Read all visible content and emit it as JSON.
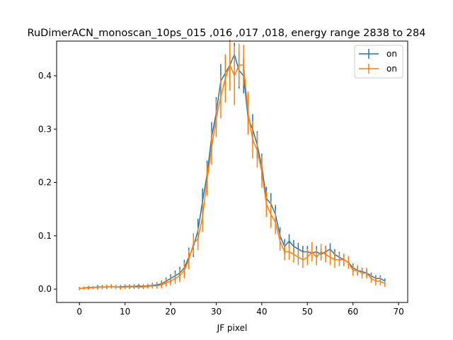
{
  "chart_data": {
    "type": "line",
    "title": "RuDimerACN_monoscan_10ps_015 ,016 ,017 ,018, energy range 2838 to 284",
    "xlabel": "JF pixel",
    "ylabel": "",
    "xlim": [
      -5,
      72
    ],
    "ylim": [
      -0.025,
      0.465
    ],
    "xticks": [
      0,
      10,
      20,
      30,
      40,
      50,
      60,
      70
    ],
    "yticks": [
      0.0,
      0.1,
      0.2,
      0.3,
      0.4
    ],
    "ytick_labels": [
      "0.0",
      "0.1",
      "0.2",
      "0.3",
      "0.4"
    ],
    "grid": false,
    "legend_position": "top-right",
    "x": [
      0,
      1,
      2,
      3,
      4,
      5,
      6,
      7,
      8,
      9,
      10,
      11,
      12,
      13,
      14,
      15,
      16,
      17,
      18,
      19,
      20,
      21,
      22,
      23,
      24,
      25,
      26,
      27,
      28,
      29,
      30,
      31,
      32,
      33,
      34,
      35,
      36,
      37,
      38,
      39,
      40,
      41,
      42,
      43,
      44,
      45,
      46,
      47,
      48,
      49,
      50,
      51,
      52,
      53,
      54,
      55,
      56,
      57,
      58,
      59,
      60,
      61,
      62,
      63,
      64,
      65,
      66,
      67
    ],
    "series": [
      {
        "name": "on",
        "color": "#1f77b4",
        "values": [
          0.001,
          0.002,
          0.003,
          0.003,
          0.004,
          0.004,
          0.004,
          0.005,
          0.004,
          0.004,
          0.005,
          0.005,
          0.005,
          0.006,
          0.005,
          0.006,
          0.007,
          0.008,
          0.01,
          0.015,
          0.02,
          0.025,
          0.03,
          0.04,
          0.06,
          0.08,
          0.11,
          0.165,
          0.215,
          0.285,
          0.33,
          0.39,
          0.405,
          0.42,
          0.44,
          0.41,
          0.4,
          0.32,
          0.3,
          0.27,
          0.23,
          0.17,
          0.16,
          0.14,
          0.1,
          0.08,
          0.09,
          0.08,
          0.075,
          0.07,
          0.07,
          0.068,
          0.07,
          0.065,
          0.07,
          0.075,
          0.065,
          0.06,
          0.055,
          0.05,
          0.04,
          0.035,
          0.033,
          0.03,
          0.025,
          0.02,
          0.02,
          0.015
        ],
        "errors": [
          0.003,
          0.003,
          0.003,
          0.003,
          0.004,
          0.004,
          0.004,
          0.004,
          0.004,
          0.004,
          0.004,
          0.004,
          0.004,
          0.004,
          0.004,
          0.004,
          0.005,
          0.005,
          0.006,
          0.007,
          0.008,
          0.01,
          0.012,
          0.015,
          0.018,
          0.02,
          0.022,
          0.024,
          0.026,
          0.028,
          0.03,
          0.032,
          0.033,
          0.034,
          0.022,
          0.034,
          0.033,
          0.03,
          0.028,
          0.026,
          0.024,
          0.022,
          0.02,
          0.018,
          0.016,
          0.014,
          0.013,
          0.012,
          0.012,
          0.011,
          0.011,
          0.011,
          0.011,
          0.011,
          0.011,
          0.011,
          0.01,
          0.01,
          0.01,
          0.009,
          0.008,
          0.008,
          0.007,
          0.007,
          0.006,
          0.006,
          0.006,
          0.005
        ]
      },
      {
        "name": "on",
        "color": "#ff7f0e",
        "values": [
          0.001,
          0.002,
          0.002,
          0.003,
          0.003,
          0.004,
          0.004,
          0.005,
          0.004,
          0.003,
          0.004,
          0.004,
          0.004,
          0.004,
          0.004,
          0.005,
          0.006,
          0.006,
          0.008,
          0.012,
          0.015,
          0.02,
          0.025,
          0.035,
          0.055,
          0.085,
          0.095,
          0.135,
          0.205,
          0.265,
          0.32,
          0.36,
          0.395,
          0.42,
          0.4,
          0.42,
          0.42,
          0.33,
          0.28,
          0.26,
          0.22,
          0.16,
          0.14,
          0.125,
          0.09,
          0.07,
          0.07,
          0.065,
          0.06,
          0.055,
          0.06,
          0.07,
          0.06,
          0.07,
          0.065,
          0.06,
          0.055,
          0.055,
          0.055,
          0.05,
          0.035,
          0.035,
          0.03,
          0.03,
          0.02,
          0.015,
          0.015,
          0.01
        ],
        "errors": [
          0.003,
          0.003,
          0.003,
          0.003,
          0.004,
          0.004,
          0.004,
          0.004,
          0.004,
          0.004,
          0.004,
          0.004,
          0.004,
          0.004,
          0.004,
          0.004,
          0.005,
          0.005,
          0.006,
          0.007,
          0.008,
          0.01,
          0.012,
          0.015,
          0.018,
          0.02,
          0.022,
          0.028,
          0.03,
          0.032,
          0.035,
          0.04,
          0.045,
          0.048,
          0.055,
          0.04,
          0.038,
          0.04,
          0.035,
          0.032,
          0.03,
          0.025,
          0.025,
          0.022,
          0.018,
          0.016,
          0.015,
          0.015,
          0.015,
          0.015,
          0.015,
          0.018,
          0.015,
          0.015,
          0.015,
          0.015,
          0.015,
          0.012,
          0.012,
          0.012,
          0.01,
          0.01,
          0.01,
          0.01,
          0.008,
          0.008,
          0.008,
          0.006
        ]
      }
    ]
  }
}
